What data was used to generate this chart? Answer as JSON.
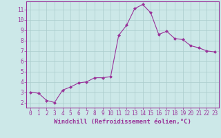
{
  "x": [
    0,
    1,
    2,
    3,
    4,
    5,
    6,
    7,
    8,
    9,
    10,
    11,
    12,
    13,
    14,
    15,
    16,
    17,
    18,
    19,
    20,
    21,
    22,
    23
  ],
  "y": [
    3.0,
    2.9,
    2.2,
    2.0,
    3.2,
    3.5,
    3.9,
    4.0,
    4.4,
    4.4,
    4.5,
    8.5,
    9.5,
    11.1,
    11.5,
    10.7,
    8.6,
    8.9,
    8.2,
    8.1,
    7.5,
    7.3,
    7.0,
    6.9
  ],
  "line_color": "#993399",
  "marker": "D",
  "marker_size": 2.0,
  "bg_color": "#cce8e8",
  "grid_color": "#aacccc",
  "xlabel": "Windchill (Refroidissement éolien,°C)",
  "xlim": [
    -0.5,
    23.5
  ],
  "ylim": [
    1.5,
    11.8
  ],
  "yticks": [
    2,
    3,
    4,
    5,
    6,
    7,
    8,
    9,
    10,
    11
  ],
  "xticks": [
    0,
    1,
    2,
    3,
    4,
    5,
    6,
    7,
    8,
    9,
    10,
    11,
    12,
    13,
    14,
    15,
    16,
    17,
    18,
    19,
    20,
    21,
    22,
    23
  ],
  "tick_color": "#993399",
  "label_color": "#993399",
  "tick_fontsize": 5.5,
  "xlabel_fontsize": 6.5,
  "linewidth": 0.8
}
